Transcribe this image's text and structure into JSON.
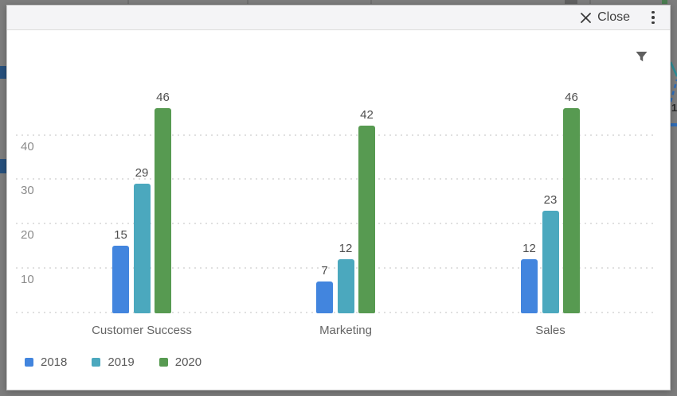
{
  "modal": {
    "header": {
      "close_label": "Close"
    }
  },
  "backdrop": {
    "fragment_label": "1"
  },
  "chart_data": {
    "type": "bar",
    "categories": [
      "Customer Success",
      "Marketing",
      "Sales"
    ],
    "series": [
      {
        "name": "2018",
        "color": "#4285DE",
        "values": [
          15,
          7,
          12
        ]
      },
      {
        "name": "2019",
        "color": "#4BA8BE",
        "values": [
          29,
          12,
          23
        ]
      },
      {
        "name": "2020",
        "color": "#579A51",
        "values": [
          46,
          42,
          46
        ]
      }
    ],
    "y_ticks": [
      10,
      20,
      30,
      40
    ],
    "ylim": [
      0,
      46
    ],
    "grid": "dotted-horizontal",
    "data_labels": true,
    "legend_position": "bottom-left",
    "colors": {
      "grid": "#e0e0e0",
      "tick_label": "#8b8b8b",
      "category_label": "#656565",
      "data_label": "#4e4e4e"
    }
  }
}
